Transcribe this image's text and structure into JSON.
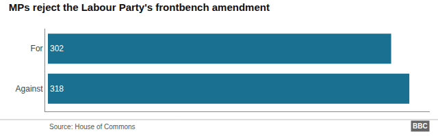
{
  "chart_data": {
    "type": "bar",
    "orientation": "horizontal",
    "title": "MPs reject the Labour Party's frontbench amendment",
    "categories": [
      "For",
      "Against"
    ],
    "values": [
      302,
      318
    ],
    "color": "#1a7090",
    "xlim": [
      0,
      336
    ],
    "xticks": [],
    "tick_labels": "y",
    "grid": false,
    "data_labels": true,
    "annotations": [
      "Source: House of Commons",
      "BBC"
    ]
  }
}
